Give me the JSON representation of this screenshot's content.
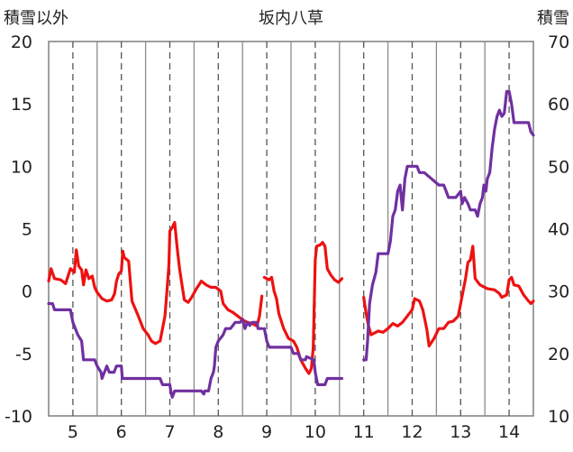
{
  "chart_data": {
    "type": "line",
    "title": "坂内八草",
    "left_axis_label": "積雪以外",
    "right_axis_label": "積雪",
    "left_ylim": [
      -10,
      20
    ],
    "left_yticks": [
      -10,
      -5,
      0,
      5,
      10,
      15,
      20
    ],
    "right_ylim": [
      10,
      70
    ],
    "right_yticks": [
      10,
      20,
      30,
      40,
      50,
      60,
      70
    ],
    "xlim": [
      4.5,
      14.5
    ],
    "x_tick_labels": [
      "5",
      "6",
      "7",
      "8",
      "9",
      "10",
      "11",
      "12",
      "13",
      "14"
    ],
    "grid": "vertical",
    "series": [
      {
        "color": "#ee1111",
        "axis": "left",
        "segments": [
          [
            [
              4.5,
              0.8
            ],
            [
              4.55,
              1.8
            ],
            [
              4.62,
              1.0
            ],
            [
              4.75,
              0.9
            ],
            [
              4.85,
              0.6
            ],
            [
              4.95,
              1.8
            ],
            [
              5.03,
              1.5
            ],
            [
              5.07,
              3.3
            ],
            [
              5.12,
              2.0
            ],
            [
              5.18,
              1.7
            ],
            [
              5.22,
              0.5
            ],
            [
              5.27,
              1.7
            ],
            [
              5.33,
              1.0
            ],
            [
              5.4,
              1.2
            ],
            [
              5.45,
              0.3
            ],
            [
              5.5,
              -0.1
            ],
            [
              5.6,
              -0.6
            ],
            [
              5.7,
              -0.8
            ],
            [
              5.8,
              -0.7
            ],
            [
              5.86,
              -0.2
            ],
            [
              5.9,
              0.8
            ],
            [
              5.95,
              1.4
            ],
            [
              6.0,
              1.6
            ],
            [
              6.03,
              3.2
            ],
            [
              6.06,
              2.7
            ],
            [
              6.15,
              2.4
            ],
            [
              6.18,
              1.0
            ],
            [
              6.22,
              -0.8
            ],
            [
              6.35,
              -2.0
            ],
            [
              6.45,
              -3.0
            ],
            [
              6.55,
              -3.5
            ],
            [
              6.62,
              -4.0
            ],
            [
              6.7,
              -4.2
            ],
            [
              6.8,
              -4.0
            ],
            [
              6.85,
              -3.0
            ],
            [
              6.9,
              -2.0
            ],
            [
              6.94,
              0.0
            ],
            [
              6.98,
              2.0
            ],
            [
              7.0,
              4.8
            ],
            [
              7.05,
              5.1
            ],
            [
              7.1,
              5.5
            ],
            [
              7.15,
              3.5
            ],
            [
              7.2,
              1.8
            ],
            [
              7.25,
              0.5
            ],
            [
              7.3,
              -0.7
            ],
            [
              7.38,
              -0.9
            ],
            [
              7.45,
              -0.5
            ],
            [
              7.55,
              0.2
            ],
            [
              7.65,
              0.8
            ],
            [
              7.75,
              0.5
            ],
            [
              7.85,
              0.3
            ],
            [
              7.95,
              0.3
            ],
            [
              8.05,
              0.0
            ],
            [
              8.1,
              -1.0
            ],
            [
              8.2,
              -1.5
            ],
            [
              8.3,
              -1.7
            ],
            [
              8.4,
              -2.0
            ],
            [
              8.5,
              -2.3
            ],
            [
              8.6,
              -2.5
            ],
            [
              8.7,
              -2.6
            ],
            [
              8.8,
              -2.8
            ],
            [
              8.85,
              -2.0
            ],
            [
              8.9,
              -0.4
            ]
          ],
          [
            [
              8.95,
              1.1
            ],
            [
              9.05,
              0.9
            ],
            [
              9.1,
              1.1
            ],
            [
              9.15,
              0.0
            ],
            [
              9.2,
              -0.6
            ],
            [
              9.25,
              -1.8
            ],
            [
              9.35,
              -3.0
            ],
            [
              9.45,
              -3.8
            ],
            [
              9.55,
              -4.0
            ],
            [
              9.62,
              -4.5
            ],
            [
              9.7,
              -5.5
            ],
            [
              9.8,
              -6.2
            ],
            [
              9.87,
              -6.6
            ],
            [
              9.92,
              -6.2
            ],
            [
              9.96,
              -4.5
            ],
            [
              9.98,
              -1.0
            ],
            [
              10.0,
              2.5
            ],
            [
              10.03,
              3.6
            ],
            [
              10.1,
              3.7
            ],
            [
              10.15,
              3.9
            ],
            [
              10.2,
              3.6
            ],
            [
              10.25,
              1.8
            ],
            [
              10.32,
              1.3
            ],
            [
              10.4,
              0.9
            ],
            [
              10.48,
              0.7
            ],
            [
              10.55,
              1.0
            ]
          ],
          [
            [
              11.0,
              -0.5
            ],
            [
              11.05,
              -1.8
            ],
            [
              11.1,
              -2.8
            ],
            [
              11.15,
              -3.5
            ],
            [
              11.2,
              -3.4
            ],
            [
              11.3,
              -3.2
            ],
            [
              11.4,
              -3.3
            ],
            [
              11.5,
              -3.0
            ],
            [
              11.6,
              -2.6
            ],
            [
              11.7,
              -2.8
            ],
            [
              11.8,
              -2.5
            ],
            [
              11.9,
              -2.0
            ],
            [
              12.0,
              -1.5
            ],
            [
              12.05,
              -0.6
            ],
            [
              12.15,
              -0.8
            ],
            [
              12.22,
              -1.5
            ],
            [
              12.3,
              -3.0
            ],
            [
              12.35,
              -4.4
            ],
            [
              12.45,
              -3.8
            ],
            [
              12.55,
              -3.0
            ],
            [
              12.65,
              -3.0
            ],
            [
              12.75,
              -2.5
            ],
            [
              12.85,
              -2.4
            ],
            [
              12.95,
              -2.0
            ],
            [
              13.0,
              -1.0
            ],
            [
              13.05,
              0.0
            ],
            [
              13.1,
              1.0
            ],
            [
              13.15,
              2.3
            ],
            [
              13.2,
              2.5
            ],
            [
              13.25,
              3.6
            ],
            [
              13.3,
              1.0
            ],
            [
              13.4,
              0.5
            ],
            [
              13.55,
              0.2
            ],
            [
              13.7,
              0.1
            ],
            [
              13.8,
              -0.2
            ],
            [
              13.85,
              -0.5
            ],
            [
              13.95,
              -0.3
            ],
            [
              14.0,
              0.9
            ],
            [
              14.05,
              1.1
            ],
            [
              14.1,
              0.5
            ],
            [
              14.2,
              0.4
            ],
            [
              14.3,
              -0.3
            ],
            [
              14.4,
              -0.8
            ],
            [
              14.45,
              -1.0
            ],
            [
              14.5,
              -0.8
            ]
          ]
        ]
      },
      {
        "color": "#7030a0",
        "axis": "right",
        "segments": [
          [
            [
              4.5,
              28.0
            ],
            [
              4.58,
              28.0
            ],
            [
              4.62,
              27.0
            ],
            [
              4.95,
              27.0
            ],
            [
              5.0,
              25.0
            ],
            [
              5.1,
              23.0
            ],
            [
              5.18,
              22.0
            ],
            [
              5.22,
              19.0
            ],
            [
              5.45,
              19.0
            ],
            [
              5.5,
              18.0
            ],
            [
              5.58,
              17.0
            ],
            [
              5.6,
              16.0
            ],
            [
              5.65,
              17.0
            ],
            [
              5.7,
              18.0
            ],
            [
              5.75,
              17.0
            ],
            [
              5.85,
              17.0
            ],
            [
              5.9,
              18.0
            ],
            [
              6.0,
              18.0
            ],
            [
              6.02,
              16.0
            ],
            [
              6.2,
              16.0
            ],
            [
              6.25,
              16.0
            ],
            [
              6.8,
              16.0
            ],
            [
              6.85,
              15.0
            ],
            [
              7.0,
              15.0
            ],
            [
              7.02,
              14.0
            ],
            [
              7.05,
              13.0
            ],
            [
              7.1,
              14.0
            ],
            [
              7.2,
              14.0
            ],
            [
              7.25,
              14.0
            ],
            [
              7.4,
              14.0
            ],
            [
              7.6,
              14.0
            ],
            [
              7.65,
              14.0
            ],
            [
              7.7,
              13.5
            ],
            [
              7.72,
              14.0
            ],
            [
              7.8,
              14.0
            ],
            [
              7.85,
              16.0
            ],
            [
              7.9,
              17.0
            ],
            [
              7.92,
              18.0
            ],
            [
              7.95,
              21.0
            ],
            [
              8.0,
              22.0
            ],
            [
              8.1,
              23.0
            ],
            [
              8.15,
              24.0
            ],
            [
              8.25,
              24.0
            ],
            [
              8.35,
              25.0
            ],
            [
              8.45,
              25.0
            ],
            [
              8.5,
              25.5
            ],
            [
              8.55,
              24.0
            ],
            [
              8.6,
              25.0
            ],
            [
              8.65,
              24.5
            ],
            [
              8.7,
              25.0
            ],
            [
              8.75,
              25.0
            ],
            [
              8.8,
              25.0
            ],
            [
              8.82,
              24.0
            ],
            [
              8.9,
              24.0
            ]
          ],
          [
            [
              8.95,
              24.0
            ],
            [
              9.0,
              22.0
            ],
            [
              9.05,
              21.0
            ],
            [
              9.5,
              21.0
            ],
            [
              9.55,
              20.0
            ],
            [
              9.65,
              20.0
            ],
            [
              9.7,
              19.0
            ],
            [
              9.8,
              19.0
            ],
            [
              9.82,
              19.5
            ],
            [
              9.97,
              19.0
            ],
            [
              10.0,
              17.0
            ],
            [
              10.05,
              15.0
            ],
            [
              10.2,
              15.0
            ],
            [
              10.25,
              16.0
            ],
            [
              10.55,
              16.0
            ]
          ],
          [
            [
              11.0,
              19.0
            ],
            [
              11.05,
              19.0
            ],
            [
              11.08,
              22.0
            ],
            [
              11.12,
              28.0
            ],
            [
              11.18,
              31.0
            ],
            [
              11.25,
              33.0
            ],
            [
              11.3,
              36.0
            ],
            [
              11.4,
              36.0
            ],
            [
              11.5,
              36.0
            ],
            [
              11.55,
              38.0
            ],
            [
              11.6,
              42.0
            ],
            [
              11.65,
              43.0
            ],
            [
              11.7,
              46.0
            ],
            [
              11.75,
              47.0
            ],
            [
              11.8,
              43.0
            ],
            [
              11.85,
              48.0
            ],
            [
              11.9,
              50.0
            ],
            [
              12.0,
              50.0
            ],
            [
              12.1,
              50.0
            ],
            [
              12.15,
              49.0
            ],
            [
              12.25,
              49.0
            ],
            [
              12.4,
              48.0
            ],
            [
              12.55,
              47.0
            ],
            [
              12.65,
              47.0
            ],
            [
              12.7,
              46.0
            ],
            [
              12.75,
              45.0
            ],
            [
              12.9,
              45.0
            ],
            [
              13.0,
              46.0
            ],
            [
              13.03,
              44.0
            ],
            [
              13.08,
              45.0
            ],
            [
              13.15,
              44.0
            ],
            [
              13.2,
              43.0
            ],
            [
              13.3,
              43.0
            ],
            [
              13.35,
              42.0
            ],
            [
              13.4,
              44.0
            ],
            [
              13.45,
              45.0
            ],
            [
              13.48,
              47.0
            ],
            [
              13.52,
              46.0
            ],
            [
              13.55,
              48.0
            ],
            [
              13.6,
              49.0
            ],
            [
              13.65,
              53.0
            ],
            [
              13.7,
              56.0
            ],
            [
              13.75,
              58.0
            ],
            [
              13.8,
              59.0
            ],
            [
              13.85,
              58.0
            ],
            [
              13.9,
              58.5
            ],
            [
              13.95,
              62.0
            ],
            [
              14.0,
              62.0
            ],
            [
              14.05,
              60.0
            ],
            [
              14.1,
              57.0
            ],
            [
              14.2,
              57.0
            ],
            [
              14.3,
              57.0
            ],
            [
              14.4,
              57.0
            ],
            [
              14.45,
              55.5
            ],
            [
              14.5,
              55.0
            ]
          ]
        ]
      }
    ]
  }
}
